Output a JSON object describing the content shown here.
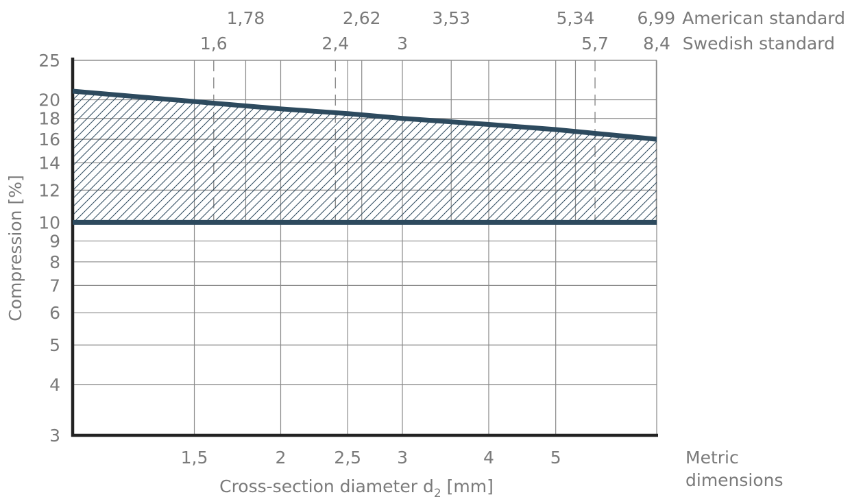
{
  "chart_data": {
    "type": "area",
    "x_scale": "log",
    "y_scale": "log",
    "xlim": [
      1.0,
      7.0
    ],
    "ylim": [
      3,
      25
    ],
    "grid": true,
    "xlabel_main": "Cross-section diameter d",
    "xlabel_sub": "2",
    "xlabel_unit": "[mm]",
    "ylabel": "Compression [%]",
    "metric_label_line1": "Metric",
    "metric_label_line2": "dimensions",
    "american_label": "American standard",
    "swedish_label": "Swedish standard",
    "y_ticks": [
      3,
      4,
      5,
      6,
      7,
      8,
      9,
      10,
      12,
      14,
      16,
      18,
      20,
      25
    ],
    "y_tick_labels": [
      "3",
      "4",
      "5",
      "6",
      "7",
      "8",
      "9",
      "10",
      "12",
      "14",
      "16",
      "18",
      "20",
      "25"
    ],
    "metric_ticks": [
      1.5,
      2,
      2.5,
      3,
      4,
      5
    ],
    "metric_tick_labels": [
      "1,5",
      "2",
      "2,5",
      "3",
      "4",
      "5"
    ],
    "american_ticks": [
      1.78,
      2.62,
      3.53,
      5.34,
      6.99
    ],
    "american_tick_labels": [
      "1,78",
      "2,62",
      "3,53",
      "5,34",
      "6,99"
    ],
    "swedish_ticks": [
      1.6,
      2.4,
      3,
      5.7,
      8.4
    ],
    "swedish_tick_labels": [
      "1,6",
      "2,4",
      "3",
      "5,7",
      "8,4"
    ],
    "swedish_line_style": "dashed",
    "swedish_dash_lines": [
      1.6,
      2.4,
      5.7
    ],
    "series": [
      {
        "role": "upper-limit",
        "x": [
          1.0,
          1.5,
          2.0,
          2.5,
          3.0,
          4.0,
          5.0,
          7.0
        ],
        "values": [
          21.0,
          19.8,
          19.0,
          18.5,
          18.0,
          17.4,
          16.9,
          16.0
        ]
      },
      {
        "role": "lower-limit",
        "x": [
          1.0,
          7.0
        ],
        "values": [
          10,
          10
        ]
      }
    ],
    "colors": {
      "line": "#2d4a5e",
      "grid": "#8a8a8a",
      "axis": "#222222",
      "text": "#7a7a7a",
      "hatch": "#2d4a5e"
    }
  }
}
